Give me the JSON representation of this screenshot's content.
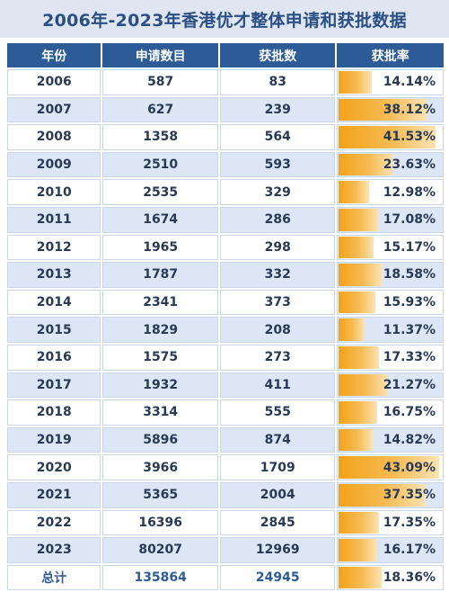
{
  "title": "2006年-2023年香港优才整体申请和获批数据",
  "headers": [
    "年份",
    "申请数目",
    "获批数",
    "获批率"
  ],
  "rows": [
    {
      "year": "2006",
      "applications": "587",
      "approved": "83",
      "rate": "14.14%",
      "rate_value": 14.14
    },
    {
      "year": "2007",
      "applications": "627",
      "approved": "239",
      "rate": "38.12%",
      "rate_value": 38.12
    },
    {
      "year": "2008",
      "applications": "1358",
      "approved": "564",
      "rate": "41.53%",
      "rate_value": 41.53
    },
    {
      "year": "2009",
      "applications": "2510",
      "approved": "593",
      "rate": "23.63%",
      "rate_value": 23.63
    },
    {
      "year": "2010",
      "applications": "2535",
      "approved": "329",
      "rate": "12.98%",
      "rate_value": 12.98
    },
    {
      "year": "2011",
      "applications": "1674",
      "approved": "286",
      "rate": "17.08%",
      "rate_value": 17.08
    },
    {
      "year": "2012",
      "applications": "1965",
      "approved": "298",
      "rate": "15.17%",
      "rate_value": 15.17
    },
    {
      "year": "2013",
      "applications": "1787",
      "approved": "332",
      "rate": "18.58%",
      "rate_value": 18.58
    },
    {
      "year": "2014",
      "applications": "2341",
      "approved": "373",
      "rate": "15.93%",
      "rate_value": 15.93
    },
    {
      "year": "2015",
      "applications": "1829",
      "approved": "208",
      "rate": "11.37%",
      "rate_value": 11.37
    },
    {
      "year": "2016",
      "applications": "1575",
      "approved": "273",
      "rate": "17.33%",
      "rate_value": 17.33
    },
    {
      "year": "2017",
      "applications": "1932",
      "approved": "411",
      "rate": "21.27%",
      "rate_value": 21.27
    },
    {
      "year": "2018",
      "applications": "3314",
      "approved": "555",
      "rate": "16.75%",
      "rate_value": 16.75
    },
    {
      "year": "2019",
      "applications": "5896",
      "approved": "874",
      "rate": "14.82%",
      "rate_value": 14.82
    },
    {
      "year": "2020",
      "applications": "3966",
      "approved": "1709",
      "rate": "43.09%",
      "rate_value": 43.09
    },
    {
      "year": "2021",
      "applications": "5365",
      "approved": "2004",
      "rate": "37.35%",
      "rate_value": 37.35
    },
    {
      "year": "2022",
      "applications": "16396",
      "approved": "2845",
      "rate": "17.35%",
      "rate_value": 17.35
    },
    {
      "year": "2023",
      "applications": "80207",
      "approved": "12969",
      "rate": "16.17%",
      "rate_value": 16.17
    },
    {
      "year": "总计",
      "applications": "135864",
      "approved": "24945",
      "rate": "18.36%",
      "rate_value": 18.36
    }
  ],
  "colors": {
    "header_bg": "#2c5b97",
    "title_bg": "#dfe6f1",
    "alt_row_bg": "#dce6f4",
    "bar": "#f3a21b"
  }
}
